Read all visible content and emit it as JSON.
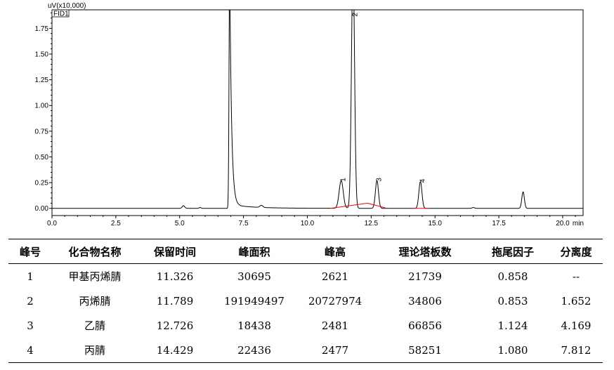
{
  "chart_data": {
    "type": "line",
    "title": "",
    "ylabel": "uV(x10,000)",
    "xlabel": "",
    "x_unit": "min",
    "trace_label": "FID1",
    "xlim": [
      0.0,
      20.8
    ],
    "ylim": [
      -0.07,
      1.93
    ],
    "x_ticks": [
      "0.0",
      "2.5",
      "5.0",
      "7.5",
      "10.0",
      "12.5",
      "15.0",
      "17.5",
      "20.0"
    ],
    "y_ticks": [
      "0.00",
      "0.25",
      "0.50",
      "0.75",
      "1.00",
      "1.25",
      "1.50",
      "1.75"
    ],
    "baseline": 0.0,
    "peaks": [
      {
        "x": 5.15,
        "height": 0.025,
        "width": 0.05
      },
      {
        "x": 5.8,
        "height": 0.008,
        "width": 0.04
      },
      {
        "x": 6.96,
        "height": 2.4,
        "width": 0.1,
        "type": "solvent"
      },
      {
        "x": 8.2,
        "height": 0.02,
        "width": 0.06
      },
      {
        "x": 11.326,
        "height": 0.27,
        "width": 0.08,
        "label": "1"
      },
      {
        "x": 11.789,
        "height": 2.4,
        "width": 0.06,
        "label": "2"
      },
      {
        "x": 12.726,
        "height": 0.27,
        "width": 0.06,
        "label": "3"
      },
      {
        "x": 14.429,
        "height": 0.26,
        "width": 0.06,
        "label": "4"
      },
      {
        "x": 16.5,
        "height": 0.008,
        "width": 0.05
      },
      {
        "x": 18.45,
        "height": 0.16,
        "width": 0.05
      }
    ],
    "integration_baselines": [
      {
        "x": [
          10.9,
          12.35
        ],
        "y": [
          0.0,
          0.05
        ]
      },
      {
        "x": [
          12.35,
          13.05
        ],
        "y": [
          0.05,
          0.005
        ]
      },
      {
        "x": [
          14.1,
          14.75
        ],
        "y": [
          0.0,
          0.0
        ]
      }
    ],
    "colors": {
      "trace": "#000000",
      "baseline": "#ff0000"
    }
  },
  "table": {
    "headers": [
      "峰号",
      "化合物名称",
      "保留时间",
      "峰面积",
      "峰高",
      "理论塔板数",
      "拖尾因子",
      "分离度"
    ],
    "rows": [
      [
        "1",
        "甲基丙烯腈",
        "11.326",
        "30695",
        "2621",
        "21739",
        "0.858",
        "--"
      ],
      [
        "2",
        "丙烯腈",
        "11.789",
        "191949497",
        "20727974",
        "34806",
        "0.853",
        "1.652"
      ],
      [
        "3",
        "乙腈",
        "12.726",
        "18438",
        "2481",
        "66856",
        "1.124",
        "4.169"
      ],
      [
        "4",
        "丙腈",
        "14.429",
        "22436",
        "2477",
        "58251",
        "1.080",
        "7.812"
      ]
    ]
  }
}
